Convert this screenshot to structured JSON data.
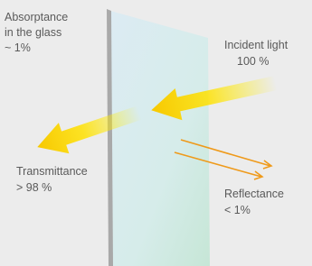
{
  "labels": {
    "absorptance": [
      "Absorptance",
      "in the glass",
      "~ 1%"
    ],
    "incident": [
      "Incident light",
      "100 %"
    ],
    "transmittance": [
      "Transmittance",
      "> 98 %"
    ],
    "reflectance": [
      "Reflectance",
      "< 1%"
    ]
  }
}
